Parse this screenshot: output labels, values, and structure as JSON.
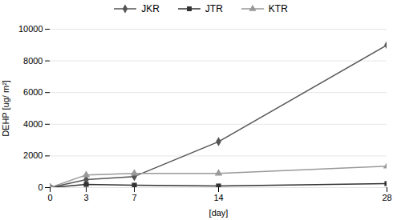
{
  "chart_data": {
    "type": "line",
    "xlabel": "[day]",
    "ylabel": "DEHP [ug/ m²]",
    "x": [
      0,
      3,
      7,
      14,
      28
    ],
    "series": [
      {
        "name": "JKR",
        "color": "#555555",
        "marker": "diamond",
        "values": [
          0,
          500,
          700,
          2900,
          9000
        ]
      },
      {
        "name": "JTR",
        "color": "#333333",
        "marker": "square",
        "values": [
          0,
          200,
          150,
          100,
          250
        ]
      },
      {
        "name": "KTR",
        "color": "#999999",
        "marker": "triangle",
        "values": [
          0,
          800,
          900,
          900,
          1350
        ]
      }
    ],
    "xlim": [
      0,
      28
    ],
    "ylim": [
      0,
      10000
    ],
    "xticks": [
      0,
      3,
      7,
      14,
      28
    ],
    "yticks": [
      0,
      2000,
      4000,
      6000,
      8000,
      10000
    ],
    "grid": "y",
    "legend": "top"
  }
}
